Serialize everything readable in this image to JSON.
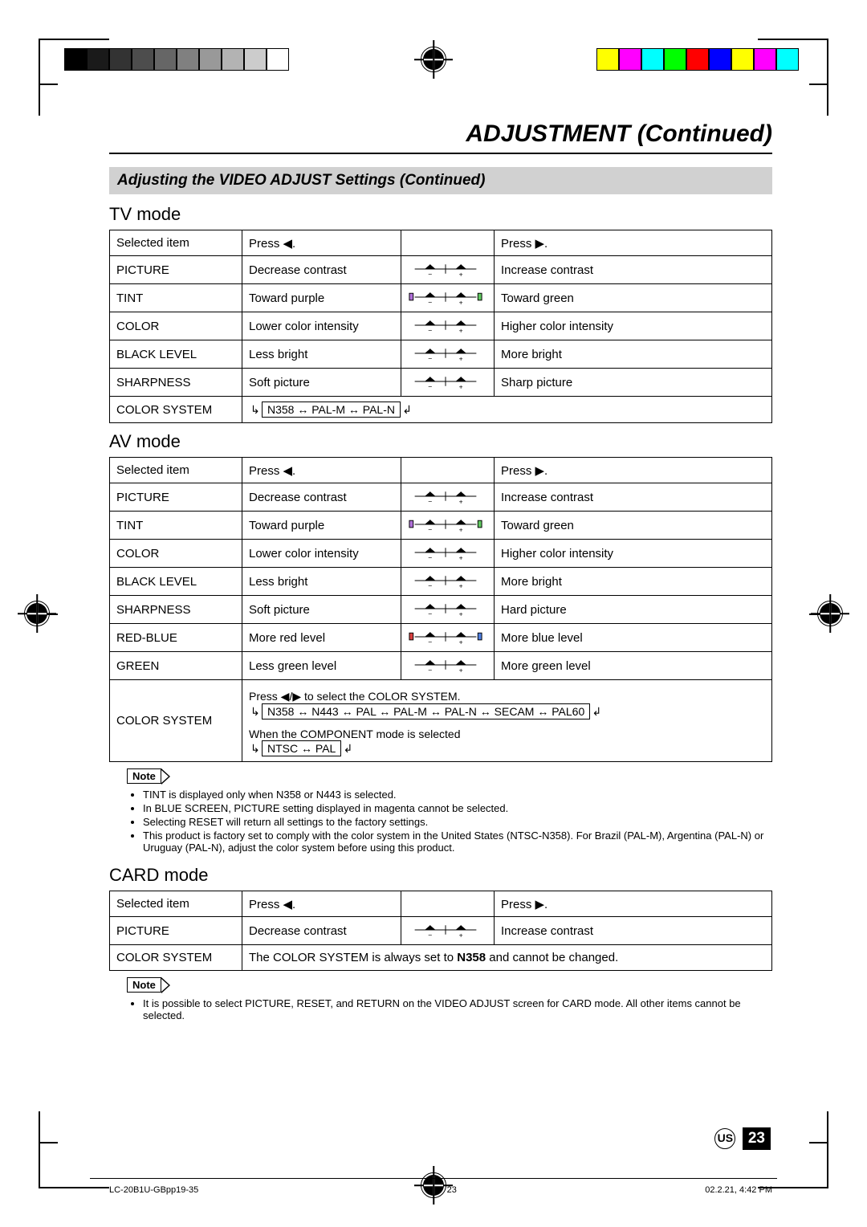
{
  "colorbar_right": [
    "#ffff00",
    "#ff00ff",
    "#00ffff",
    "#00ff00",
    "#ff0000",
    "#0000ff",
    "#ffff00",
    "#ff00ff",
    "#00ffff"
  ],
  "title": "ADJUSTMENT (Continued)",
  "subtitle": "Adjusting the VIDEO ADJUST Settings (Continued)",
  "tv": {
    "heading": "TV mode",
    "header": [
      "Selected item",
      "Press ◀.",
      "",
      "Press ▶."
    ],
    "rows": [
      [
        "PICTURE",
        "Decrease contrast",
        "s_plain",
        "Increase contrast"
      ],
      [
        "TINT",
        "Toward purple",
        "s_pg",
        "Toward green"
      ],
      [
        "COLOR",
        "Lower color intensity",
        "s_plain",
        "Higher color intensity"
      ],
      [
        "BLACK LEVEL",
        "Less bright",
        "s_plain",
        "More bright"
      ],
      [
        "SHARPNESS",
        "Soft picture",
        "s_plain",
        "Sharp picture"
      ]
    ],
    "system_row": [
      "COLOR SYSTEM",
      "N358 ↔ PAL-M ↔ PAL-N"
    ]
  },
  "av": {
    "heading": "AV mode",
    "header": [
      "Selected item",
      "Press ◀.",
      "",
      "Press ▶."
    ],
    "rows": [
      [
        "PICTURE",
        "Decrease contrast",
        "s_plain",
        "Increase contrast"
      ],
      [
        "TINT",
        "Toward purple",
        "s_pg",
        "Toward green"
      ],
      [
        "COLOR",
        "Lower color intensity",
        "s_plain",
        "Higher color intensity"
      ],
      [
        "BLACK LEVEL",
        "Less bright",
        "s_plain",
        "More bright"
      ],
      [
        "SHARPNESS",
        "Soft picture",
        "s_plain",
        "Hard picture"
      ],
      [
        "RED-BLUE",
        "More red level",
        "s_rb",
        "More blue level"
      ],
      [
        "GREEN",
        "Less green level",
        "s_plain",
        "More green level"
      ]
    ],
    "system_label": "COLOR SYSTEM",
    "system_press": "Press ◀/▶ to select the COLOR SYSTEM.",
    "system_cycle": "N358 ↔ N443 ↔ PAL ↔ PAL-M ↔ PAL-N ↔ SECAM ↔ PAL60",
    "component_txt": "When the COMPONENT mode is selected",
    "component_cycle": "NTSC ↔ PAL"
  },
  "av_note": [
    "TINT is displayed only when N358 or N443 is selected.",
    "In BLUE SCREEN, PICTURE setting displayed in magenta cannot be selected.",
    "Selecting RESET will return all settings to the factory settings.",
    "This product is factory set to comply with the color system in the United States (NTSC-N358). For Brazil (PAL-M), Argentina (PAL-N) or Uruguay (PAL-N), adjust the color system before using this product."
  ],
  "card": {
    "heading": "CARD mode",
    "header": [
      "Selected item",
      "Press ◀.",
      "",
      "Press ▶."
    ],
    "rows": [
      [
        "PICTURE",
        "Decrease contrast",
        "s_plain",
        "Increase contrast"
      ]
    ],
    "system_label": "COLOR SYSTEM",
    "system_text_pre": "The COLOR SYSTEM is always set to ",
    "system_bold": "N358",
    "system_text_post": " and cannot be changed."
  },
  "card_note": [
    "It is possible to select PICTURE, RESET, and RETURN on the VIDEO ADJUST screen for CARD mode. All other items cannot be selected."
  ],
  "note_label": "Note",
  "us_badge": "US",
  "page_number": "23",
  "footer_left": "LC-20B1U-GBpp19-35",
  "footer_mid": "23",
  "footer_right": "02.2.21, 4:42 PM"
}
